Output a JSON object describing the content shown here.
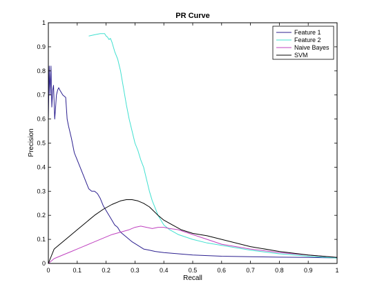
{
  "chart_data": {
    "type": "line",
    "title": "PR Curve",
    "xlabel": "Recall",
    "ylabel": "Precision",
    "xlim": [
      0,
      1
    ],
    "ylim": [
      0,
      1
    ],
    "xticks": [
      0,
      0.1,
      0.2,
      0.3,
      0.4,
      0.5,
      0.6,
      0.7,
      0.8,
      0.9,
      1
    ],
    "xtick_labels": [
      "0",
      "0.1",
      "0.2",
      "0.3",
      "0.4",
      "0.5",
      "0.6",
      "0.7",
      "0.8",
      "0.9",
      "1"
    ],
    "yticks": [
      0,
      0.1,
      0.2,
      0.3,
      0.4,
      0.5,
      0.6,
      0.7,
      0.8,
      0.9,
      1
    ],
    "ytick_labels": [
      "0",
      "0.1",
      "0.2",
      "0.3",
      "0.4",
      "0.5",
      "0.6",
      "0.7",
      "0.8",
      "0.9",
      "1"
    ],
    "grid": false,
    "legend_position": "top-right",
    "series": [
      {
        "name": "Feature 1",
        "color": "#2b1f8f",
        "x": [
          0,
          0.003,
          0.006,
          0.009,
          0.012,
          0.015,
          0.018,
          0.022,
          0.025,
          0.028,
          0.032,
          0.036,
          0.04,
          0.05,
          0.06,
          0.065,
          0.07,
          0.08,
          0.09,
          0.1,
          0.11,
          0.12,
          0.13,
          0.14,
          0.15,
          0.16,
          0.17,
          0.18,
          0.19,
          0.2,
          0.21,
          0.22,
          0.23,
          0.24,
          0.25,
          0.27,
          0.29,
          0.31,
          0.33,
          0.35,
          0.37,
          0.4,
          0.45,
          0.5,
          0.6,
          0.7,
          0.8,
          0.9,
          1.0
        ],
        "y": [
          0.6,
          0.82,
          0.7,
          0.82,
          0.65,
          0.72,
          0.74,
          0.6,
          0.65,
          0.7,
          0.72,
          0.73,
          0.72,
          0.7,
          0.69,
          0.6,
          0.57,
          0.52,
          0.46,
          0.43,
          0.4,
          0.37,
          0.34,
          0.31,
          0.3,
          0.3,
          0.29,
          0.27,
          0.24,
          0.22,
          0.2,
          0.18,
          0.16,
          0.15,
          0.13,
          0.11,
          0.09,
          0.075,
          0.06,
          0.055,
          0.05,
          0.045,
          0.04,
          0.035,
          0.03,
          0.028,
          0.026,
          0.025,
          0.023
        ]
      },
      {
        "name": "Feature 2",
        "color": "#40e0d0",
        "x": [
          0.14,
          0.16,
          0.18,
          0.195,
          0.2,
          0.205,
          0.21,
          0.215,
          0.22,
          0.23,
          0.24,
          0.25,
          0.26,
          0.27,
          0.28,
          0.29,
          0.3,
          0.31,
          0.32,
          0.33,
          0.34,
          0.35,
          0.36,
          0.37,
          0.38,
          0.39,
          0.4,
          0.42,
          0.45,
          0.5,
          0.55,
          0.6,
          0.7,
          0.8,
          0.9,
          1.0
        ],
        "y": [
          0.945,
          0.95,
          0.955,
          0.955,
          0.945,
          0.94,
          0.93,
          0.935,
          0.92,
          0.88,
          0.85,
          0.8,
          0.73,
          0.66,
          0.6,
          0.55,
          0.5,
          0.47,
          0.43,
          0.4,
          0.35,
          0.3,
          0.26,
          0.23,
          0.2,
          0.18,
          0.16,
          0.14,
          0.12,
          0.1,
          0.085,
          0.075,
          0.055,
          0.04,
          0.03,
          0.022
        ]
      },
      {
        "name": "Naive Bayes",
        "color": "#bf40bf",
        "x": [
          0,
          0.02,
          0.04,
          0.06,
          0.08,
          0.1,
          0.12,
          0.15,
          0.18,
          0.2,
          0.22,
          0.25,
          0.28,
          0.3,
          0.32,
          0.34,
          0.36,
          0.38,
          0.4,
          0.42,
          0.45,
          0.5,
          0.55,
          0.6,
          0.7,
          0.8,
          0.9,
          1.0
        ],
        "y": [
          0,
          0.02,
          0.03,
          0.04,
          0.05,
          0.06,
          0.07,
          0.085,
          0.1,
          0.11,
          0.12,
          0.13,
          0.14,
          0.15,
          0.155,
          0.15,
          0.145,
          0.15,
          0.15,
          0.145,
          0.14,
          0.12,
          0.1,
          0.08,
          0.06,
          0.045,
          0.035,
          0.025
        ]
      },
      {
        "name": "SVM",
        "color": "#000000",
        "x": [
          0,
          0.01,
          0.02,
          0.03,
          0.05,
          0.07,
          0.1,
          0.13,
          0.16,
          0.19,
          0.22,
          0.25,
          0.27,
          0.29,
          0.31,
          0.33,
          0.35,
          0.38,
          0.4,
          0.43,
          0.46,
          0.5,
          0.55,
          0.6,
          0.7,
          0.8,
          0.9,
          1.0
        ],
        "y": [
          0,
          0.03,
          0.06,
          0.07,
          0.09,
          0.11,
          0.14,
          0.17,
          0.2,
          0.225,
          0.245,
          0.26,
          0.265,
          0.265,
          0.26,
          0.25,
          0.235,
          0.2,
          0.18,
          0.16,
          0.14,
          0.125,
          0.115,
          0.1,
          0.07,
          0.05,
          0.035,
          0.025
        ]
      }
    ]
  }
}
